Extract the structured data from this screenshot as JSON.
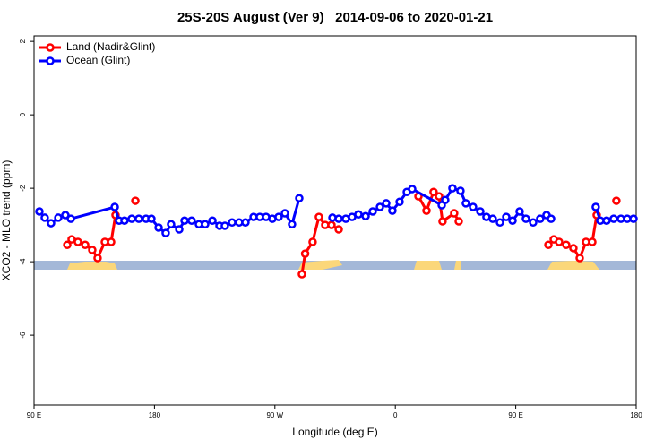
{
  "chart_data": {
    "type": "line",
    "title": "25S-20S August (Ver 9)   2014-09-06 to 2020-01-21",
    "x_label": "Longitude (deg E)",
    "y_label": "XCO2 - MLO trend (ppm)",
    "xlim": [
      90,
      540
    ],
    "xticks": [
      {
        "value": 90,
        "label": "90 E"
      },
      180,
      {
        "value": 270,
        "label": "90 W"
      },
      {
        "value": 360,
        "label": "0"
      },
      {
        "value": 450,
        "label": "90 E"
      },
      {
        "value": 540,
        "label": "180"
      }
    ],
    "ylim": [
      -7.9,
      2.15
    ],
    "yticks": [
      -6,
      -4,
      -2,
      0,
      2
    ],
    "legend": "top-left",
    "series": [
      {
        "name": "Land (Nadir&Glint)",
        "color": "#ff0000",
        "x": [
          114.8,
          118.1,
          122.8,
          128.2,
          133.5,
          137.5,
          142.9,
          147.6,
          150.9,
          155,
          165.7,
          220,
          290.2,
          292.6,
          298.2,
          302.9,
          307.6,
          312.3,
          317.7,
          350,
          377.3,
          383.3,
          388.6,
          392.7,
          395.3,
          404.0,
          407.4,
          450,
          474.4,
          478.4,
          482.4,
          487.7,
          493.1,
          497.8,
          502.5,
          507.2,
          510.5,
          515,
          525.2
        ],
        "values": [
          -3.54,
          -3.39,
          -3.46,
          -3.54,
          -3.68,
          -3.9,
          -3.46,
          -3.46,
          -2.73,
          null,
          -2.34,
          null,
          -4.34,
          -3.78,
          -3.46,
          -2.78,
          -3.0,
          -3.0,
          -3.12,
          null,
          -2.22,
          -2.61,
          -2.1,
          -2.22,
          -2.9,
          -2.68,
          -2.9,
          null,
          -3.54,
          -3.39,
          -3.46,
          -3.54,
          -3.63,
          -3.9,
          -3.46,
          -3.46,
          -2.73,
          null,
          -2.34
        ]
      },
      {
        "name": "Ocean (Glint)",
        "color": "#0000ff",
        "x": [
          94.0,
          98.0,
          102.7,
          108.1,
          113.4,
          117.5,
          150.3,
          153.6,
          157.6,
          163.0,
          168.3,
          173.7,
          177.7,
          183.1,
          188.4,
          192.4,
          198.5,
          202.5,
          207.8,
          213.2,
          217.9,
          223.3,
          228.6,
          232.6,
          238.0,
          243.3,
          248.0,
          254.1,
          258.7,
          263.4,
          268.1,
          272.8,
          277.5,
          282.8,
          288.2,
          300,
          313.0,
          317.7,
          323.0,
          327.7,
          332.4,
          337.8,
          343.1,
          348.5,
          353.2,
          357.8,
          363.2,
          368.6,
          372.6,
          394.7,
          397.3,
          402.7,
          408.7,
          412.7,
          418.1,
          423.5,
          428.1,
          432.8,
          438.2,
          442.9,
          447.6,
          452.9,
          457.6,
          463.0,
          468.3,
          473.0,
          476.4,
          500,
          509.8,
          513.2,
          517.9,
          523.2,
          528.6,
          533.3,
          538.0
        ],
        "values": [
          -2.63,
          -2.8,
          -2.95,
          -2.8,
          -2.73,
          -2.83,
          -2.51,
          -2.88,
          -2.88,
          -2.83,
          -2.83,
          -2.83,
          -2.83,
          -3.07,
          -3.22,
          -2.98,
          -3.12,
          -2.88,
          -2.88,
          -2.98,
          -2.98,
          -2.88,
          -3.02,
          -3.02,
          -2.93,
          -2.93,
          -2.93,
          -2.78,
          -2.78,
          -2.78,
          -2.83,
          -2.78,
          -2.68,
          -2.98,
          -2.27,
          null,
          -2.8,
          -2.83,
          -2.83,
          -2.78,
          -2.71,
          -2.76,
          -2.63,
          -2.51,
          -2.41,
          -2.61,
          -2.37,
          -2.1,
          -2.02,
          -2.46,
          -2.32,
          -2.0,
          -2.07,
          -2.41,
          -2.51,
          -2.63,
          -2.78,
          -2.83,
          -2.93,
          -2.78,
          -2.88,
          -2.63,
          -2.83,
          -2.93,
          -2.83,
          -2.73,
          -2.83,
          null,
          -2.51,
          -2.88,
          -2.88,
          -2.83,
          -2.83,
          -2.83,
          -2.83
        ]
      }
    ]
  }
}
